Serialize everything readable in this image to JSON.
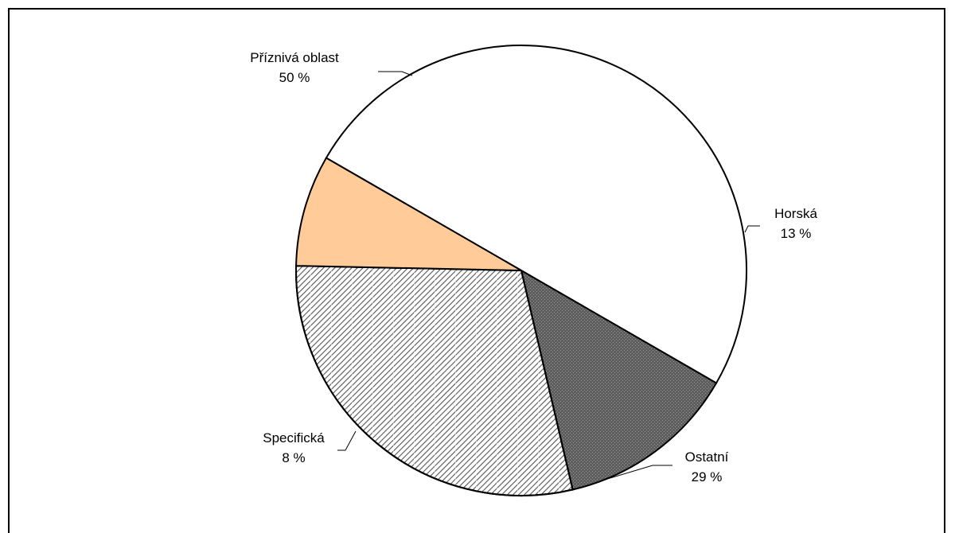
{
  "chart_data": {
    "type": "pie",
    "title": "",
    "slices": [
      {
        "label": "Příznivá oblast",
        "value": 50,
        "value_text": "50 %",
        "fill": "#ffffff",
        "pattern": "none"
      },
      {
        "label": "Horská",
        "value": 13,
        "value_text": "13 %",
        "fill": "#6b6b6b",
        "pattern": "dots"
      },
      {
        "label": "Ostatní",
        "value": 29,
        "value_text": "29 %",
        "fill": "#ffffff",
        "pattern": "diagonal-hatch"
      },
      {
        "label": "Specifická",
        "value": 8,
        "value_text": "8 %",
        "fill": "#ffcc99",
        "pattern": "none"
      }
    ],
    "legend": "none",
    "start_angle_deg": 150,
    "direction": "clockwise"
  }
}
